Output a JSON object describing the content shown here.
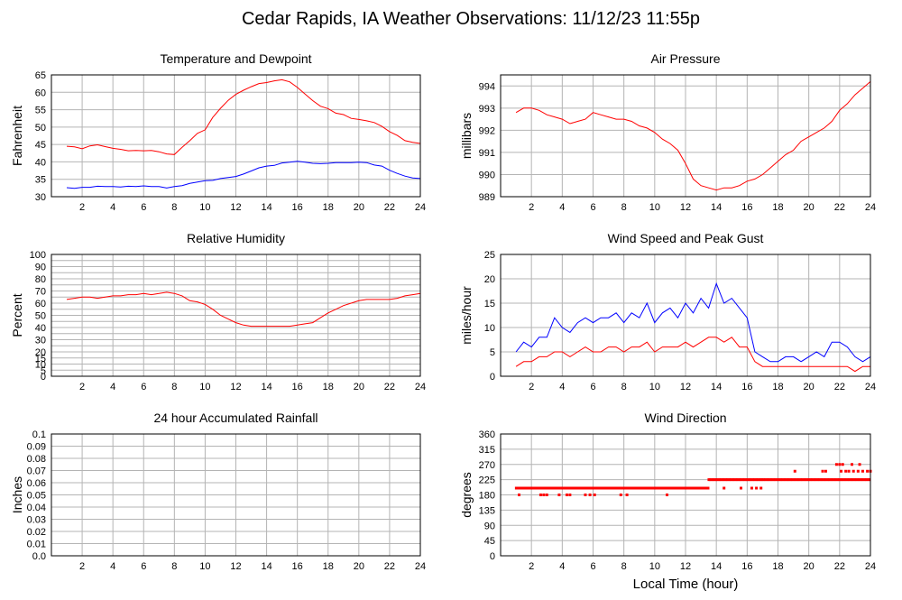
{
  "page_title": "Cedar Rapids, IA Weather Observations: 11/12/23 11:55p",
  "shared_xlabel": "Local Time (hour)",
  "colors": {
    "red": "#ff0000",
    "blue": "#0000ff",
    "grid": "#b4b4b4",
    "frame": "#000000"
  },
  "chart_data": [
    {
      "id": "temp",
      "type": "line",
      "title": "Temperature and Dewpoint",
      "xlabel": "",
      "ylabel": "Fahrenheit",
      "xlim": [
        0,
        24
      ],
      "ylim": [
        30,
        65
      ],
      "xticks": [
        2,
        4,
        6,
        8,
        10,
        12,
        14,
        16,
        18,
        20,
        22,
        24
      ],
      "yticks": [
        30,
        35,
        40,
        45,
        50,
        55,
        60,
        65
      ],
      "x": [
        1,
        1.5,
        2,
        2.5,
        3,
        3.5,
        4,
        4.5,
        5,
        5.5,
        6,
        6.5,
        7,
        7.5,
        8,
        8.5,
        9,
        9.5,
        10,
        10.5,
        11,
        11.5,
        12,
        12.5,
        13,
        13.5,
        14,
        14.5,
        15,
        15.5,
        16,
        16.5,
        17,
        17.5,
        18,
        18.5,
        19,
        19.5,
        20,
        20.5,
        21,
        21.5,
        22,
        22.5,
        23,
        23.5,
        24
      ],
      "series": [
        {
          "color": "#ff0000",
          "style": "line",
          "values": [
            44.5,
            44.3,
            43.8,
            44.6,
            44.9,
            44.4,
            43.9,
            43.6,
            43.2,
            43.3,
            43.2,
            43.3,
            42.9,
            42.3,
            42.1,
            44.2,
            46.1,
            48.2,
            49.2,
            52.8,
            55.4,
            57.7,
            59.4,
            60.6,
            61.6,
            62.5,
            62.8,
            63.3,
            63.6,
            63.0,
            61.4,
            59.5,
            57.6,
            56.0,
            55.3,
            54.0,
            53.6,
            52.5,
            52.2,
            51.8,
            51.3,
            50.2,
            48.7,
            47.6,
            46.1,
            45.6,
            45.3
          ]
        },
        {
          "color": "#0000ff",
          "style": "line",
          "values": [
            32.6,
            32.4,
            32.7,
            32.7,
            33.0,
            32.9,
            32.9,
            32.8,
            33.0,
            32.9,
            33.1,
            32.9,
            32.9,
            32.5,
            32.9,
            33.2,
            33.8,
            34.2,
            34.6,
            34.7,
            35.2,
            35.5,
            35.8,
            36.5,
            37.4,
            38.3,
            38.8,
            39.0,
            39.7,
            39.9,
            40.2,
            39.9,
            39.6,
            39.5,
            39.6,
            39.8,
            39.8,
            39.8,
            39.9,
            39.8,
            39.1,
            38.8,
            37.6,
            36.7,
            35.9,
            35.4,
            35.2
          ]
        }
      ]
    },
    {
      "id": "pressure",
      "type": "line",
      "title": "Air Pressure",
      "xlabel": "",
      "ylabel": "millibars",
      "xlim": [
        0,
        24
      ],
      "ylim": [
        989,
        994.5
      ],
      "xticks": [
        2,
        4,
        6,
        8,
        10,
        12,
        14,
        16,
        18,
        20,
        22,
        24
      ],
      "yticks": [
        989,
        990,
        991,
        992,
        993,
        994
      ],
      "x": [
        1,
        1.5,
        2,
        2.5,
        3,
        3.5,
        4,
        4.5,
        5,
        5.5,
        6,
        6.5,
        7,
        7.5,
        8,
        8.5,
        9,
        9.5,
        10,
        10.5,
        11,
        11.5,
        12,
        12.5,
        13,
        13.5,
        14,
        14.5,
        15,
        15.5,
        16,
        16.5,
        17,
        17.5,
        18,
        18.5,
        19,
        19.5,
        20,
        20.5,
        21,
        21.5,
        22,
        22.5,
        23,
        23.5,
        24
      ],
      "series": [
        {
          "color": "#ff0000",
          "style": "line",
          "values": [
            992.8,
            993.0,
            993.0,
            992.9,
            992.7,
            992.6,
            992.5,
            992.3,
            992.4,
            992.5,
            992.8,
            992.7,
            992.6,
            992.5,
            992.5,
            992.4,
            992.2,
            992.1,
            991.9,
            991.6,
            991.4,
            991.1,
            990.5,
            989.8,
            989.5,
            989.4,
            989.3,
            989.4,
            989.4,
            989.5,
            989.7,
            989.8,
            990.0,
            990.3,
            990.6,
            990.9,
            991.1,
            991.5,
            991.7,
            991.9,
            992.1,
            992.4,
            992.9,
            993.2,
            993.6,
            993.9,
            994.2
          ]
        }
      ]
    },
    {
      "id": "humidity",
      "type": "line",
      "title": "Relative Humidity",
      "xlabel": "",
      "ylabel": "Percent",
      "xlim": [
        0,
        24
      ],
      "ylim": [
        0,
        100
      ],
      "xticks": [
        2,
        4,
        6,
        8,
        10,
        12,
        14,
        16,
        18,
        20,
        22,
        24
      ],
      "yticks": [
        0,
        5,
        10,
        15,
        20,
        25,
        30,
        35,
        40,
        45,
        50,
        55,
        60,
        65,
        70,
        75,
        80,
        85,
        90,
        95,
        100
      ],
      "ytick_labels": [
        0,
        5,
        10,
        15,
        20,
        30,
        40,
        50,
        60,
        70,
        80,
        90,
        100
      ],
      "x": [
        1,
        1.5,
        2,
        2.5,
        3,
        3.5,
        4,
        4.5,
        5,
        5.5,
        6,
        6.5,
        7,
        7.5,
        8,
        8.5,
        9,
        9.5,
        10,
        10.5,
        11,
        11.5,
        12,
        12.5,
        13,
        13.5,
        14,
        14.5,
        15,
        15.5,
        16,
        16.5,
        17,
        17.5,
        18,
        18.5,
        19,
        19.5,
        20,
        20.5,
        21,
        21.5,
        22,
        22.5,
        23,
        23.5,
        24
      ],
      "series": [
        {
          "color": "#ff0000",
          "style": "line",
          "values": [
            63,
            64,
            65,
            65,
            64,
            65,
            66,
            66,
            67,
            67,
            68,
            67,
            68,
            69,
            68,
            66,
            62,
            61,
            59,
            55,
            50,
            47,
            44,
            42,
            41,
            41,
            41,
            41,
            41,
            41,
            42,
            43,
            44,
            48,
            52,
            55,
            58,
            60,
            62,
            63,
            63,
            63,
            63,
            64,
            66,
            67,
            68
          ]
        }
      ]
    },
    {
      "id": "wind",
      "type": "line",
      "title": "Wind Speed and Peak Gust",
      "xlabel": "",
      "ylabel": "miles/hour",
      "xlim": [
        0,
        24
      ],
      "ylim": [
        0,
        25
      ],
      "xticks": [
        2,
        4,
        6,
        8,
        10,
        12,
        14,
        16,
        18,
        20,
        22,
        24
      ],
      "yticks": [
        0,
        5,
        10,
        15,
        20,
        25
      ],
      "x": [
        1,
        1.5,
        2,
        2.5,
        3,
        3.5,
        4,
        4.5,
        5,
        5.5,
        6,
        6.5,
        7,
        7.5,
        8,
        8.5,
        9,
        9.5,
        10,
        10.5,
        11,
        11.5,
        12,
        12.5,
        13,
        13.5,
        14,
        14.5,
        15,
        15.5,
        16,
        16.5,
        17,
        17.5,
        18,
        18.5,
        19,
        19.5,
        20,
        20.5,
        21,
        21.5,
        22,
        22.5,
        23,
        23.5,
        24
      ],
      "series": [
        {
          "color": "#0000ff",
          "style": "line",
          "values": [
            5,
            7,
            6,
            8,
            8,
            12,
            10,
            9,
            11,
            12,
            11,
            12,
            12,
            13,
            11,
            13,
            12,
            15,
            11,
            13,
            14,
            12,
            15,
            13,
            16,
            14,
            19,
            15,
            16,
            14,
            12,
            5,
            4,
            3,
            3,
            4,
            4,
            3,
            4,
            5,
            4,
            7,
            7,
            6,
            4,
            3,
            4
          ]
        },
        {
          "color": "#ff0000",
          "style": "line",
          "values": [
            2,
            3,
            3,
            4,
            4,
            5,
            5,
            4,
            5,
            6,
            5,
            5,
            6,
            6,
            5,
            6,
            6,
            7,
            5,
            6,
            6,
            6,
            7,
            6,
            7,
            8,
            8,
            7,
            8,
            6,
            6,
            3,
            2,
            2,
            2,
            2,
            2,
            2,
            2,
            2,
            2,
            2,
            2,
            2,
            1,
            2,
            2
          ]
        }
      ]
    },
    {
      "id": "rain",
      "type": "line",
      "title": "24 hour Accumulated Rainfall",
      "xlabel": "",
      "ylabel": "Inches",
      "xlim": [
        0,
        24
      ],
      "ylim": [
        0,
        0.1
      ],
      "xticks": [
        2,
        4,
        6,
        8,
        10,
        12,
        14,
        16,
        18,
        20,
        22,
        24
      ],
      "yticks": [
        0,
        0.01,
        0.02,
        0.03,
        0.04,
        0.05,
        0.06,
        0.07,
        0.08,
        0.09,
        0.1
      ],
      "ytick_labels": [
        "0.0",
        "0.01",
        "0.02",
        "0.03",
        "0.04",
        "0.05",
        "0.06",
        "0.07",
        "0.08",
        "0.09",
        "0.1"
      ],
      "x": [
        1,
        24
      ],
      "series": [
        {
          "color": "#ff0000",
          "style": "line",
          "values": [
            0,
            0
          ]
        }
      ]
    },
    {
      "id": "direction",
      "type": "scatter",
      "title": "Wind Direction",
      "xlabel": "Local Time (hour)",
      "ylabel": "degrees",
      "xlim": [
        0,
        24
      ],
      "ylim": [
        0,
        360
      ],
      "xticks": [
        2,
        4,
        6,
        8,
        10,
        12,
        14,
        16,
        18,
        20,
        22,
        24
      ],
      "yticks": [
        0,
        45,
        90,
        135,
        180,
        225,
        270,
        315,
        360
      ],
      "series": [
        {
          "color": "#ff0000",
          "style": "points",
          "segments": [
            {
              "x_start": 1.0,
              "x_end": 13.5,
              "y": 200
            },
            {
              "x_start": 13.5,
              "x_end": 17.0,
              "y": 225
            },
            {
              "x_start": 17.0,
              "x_end": 24.0,
              "y": 225
            }
          ],
          "points": [
            {
              "x": 1.2,
              "y": 180
            },
            {
              "x": 2.6,
              "y": 180
            },
            {
              "x": 2.8,
              "y": 180
            },
            {
              "x": 3.0,
              "y": 180
            },
            {
              "x": 3.8,
              "y": 180
            },
            {
              "x": 4.3,
              "y": 180
            },
            {
              "x": 4.5,
              "y": 180
            },
            {
              "x": 5.5,
              "y": 180
            },
            {
              "x": 5.8,
              "y": 180
            },
            {
              "x": 6.1,
              "y": 180
            },
            {
              "x": 7.8,
              "y": 180
            },
            {
              "x": 8.2,
              "y": 180
            },
            {
              "x": 10.8,
              "y": 180
            },
            {
              "x": 14.5,
              "y": 200
            },
            {
              "x": 15.6,
              "y": 200
            },
            {
              "x": 16.3,
              "y": 200
            },
            {
              "x": 16.6,
              "y": 200
            },
            {
              "x": 16.9,
              "y": 200
            },
            {
              "x": 19.1,
              "y": 250
            },
            {
              "x": 20.9,
              "y": 250
            },
            {
              "x": 21.1,
              "y": 250
            },
            {
              "x": 21.8,
              "y": 270
            },
            {
              "x": 22.0,
              "y": 270
            },
            {
              "x": 22.2,
              "y": 270
            },
            {
              "x": 22.8,
              "y": 270
            },
            {
              "x": 23.3,
              "y": 270
            },
            {
              "x": 22.1,
              "y": 250
            },
            {
              "x": 22.4,
              "y": 250
            },
            {
              "x": 22.6,
              "y": 250
            },
            {
              "x": 22.9,
              "y": 250
            },
            {
              "x": 23.2,
              "y": 250
            },
            {
              "x": 23.5,
              "y": 250
            },
            {
              "x": 23.8,
              "y": 250
            },
            {
              "x": 24.0,
              "y": 250
            }
          ]
        }
      ]
    }
  ]
}
